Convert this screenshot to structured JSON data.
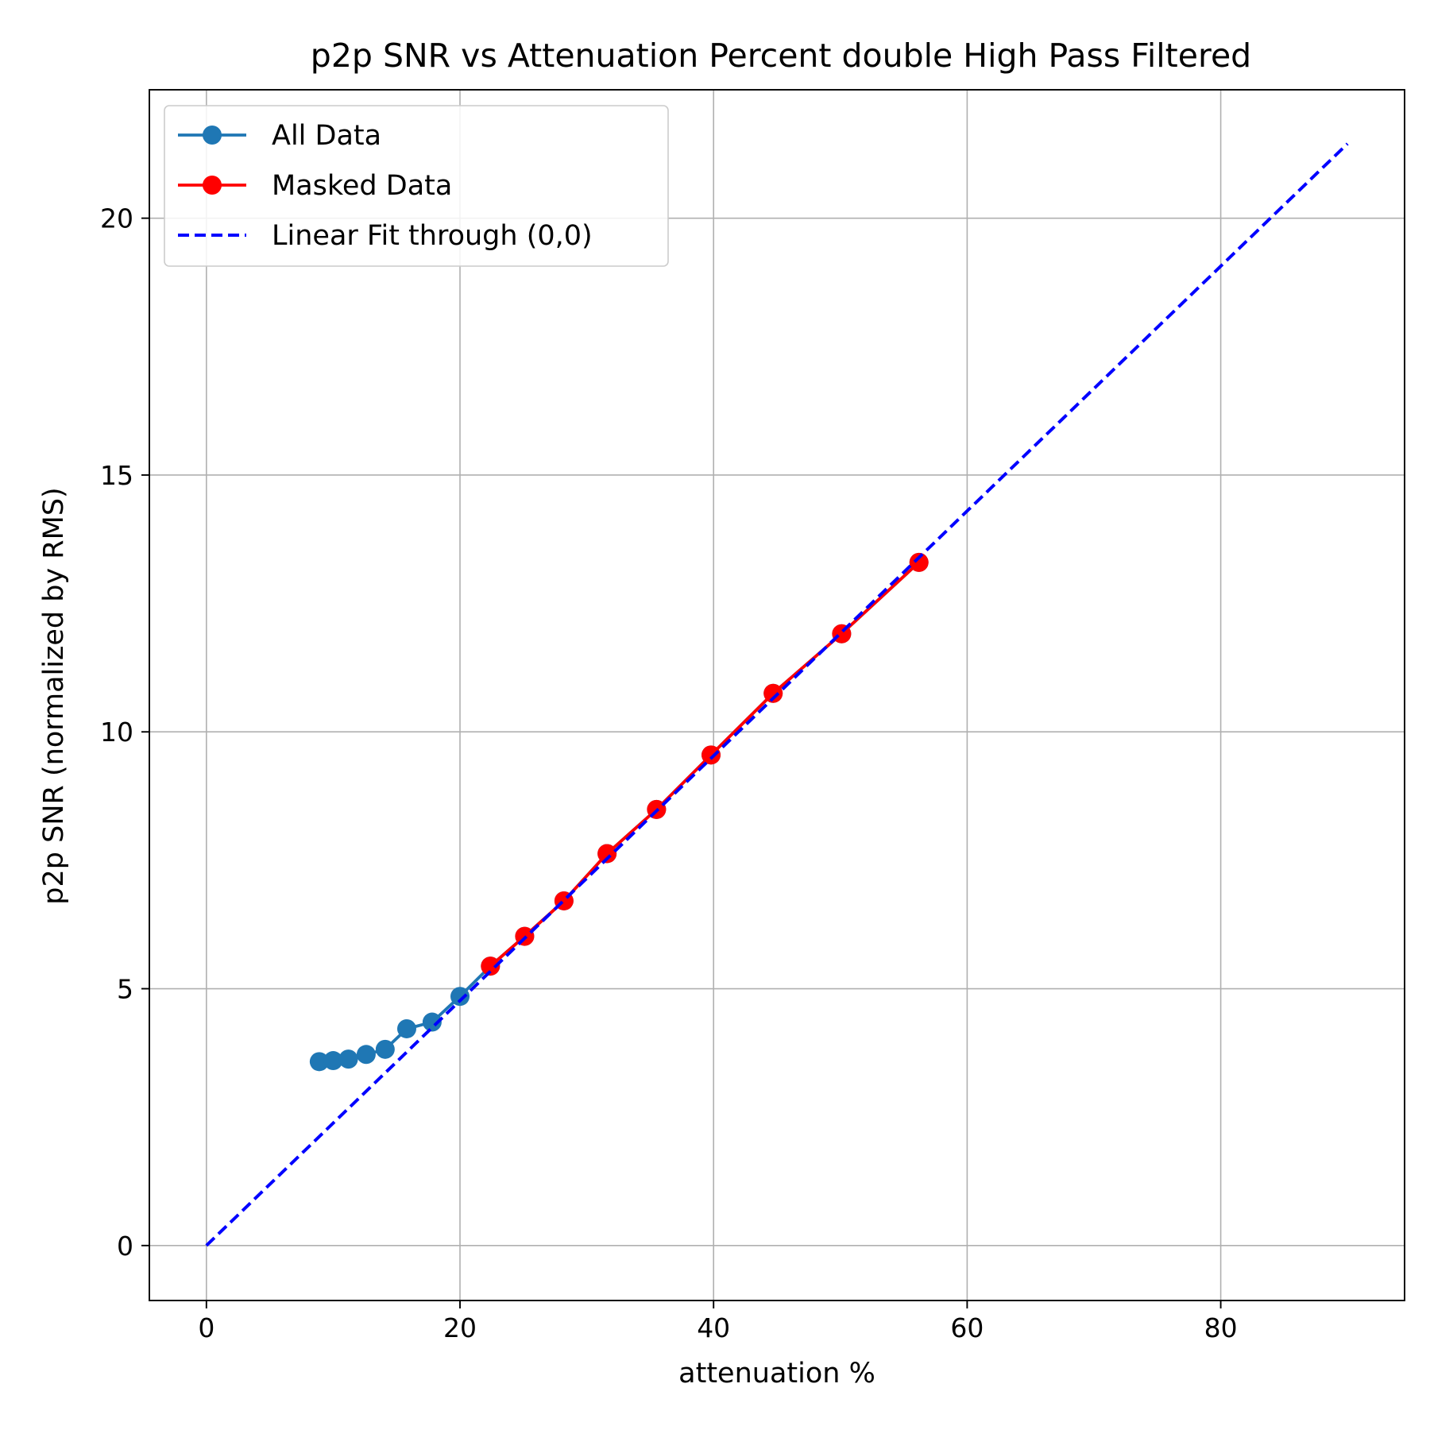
{
  "chart_data": {
    "type": "line",
    "title": "p2p SNR vs Attenuation Percent double High Pass Filtered",
    "xlabel": "attenuation %",
    "ylabel": "p2p SNR (normalized by RMS)",
    "xlim": [
      -4.5,
      94.5
    ],
    "ylim": [
      -1.07,
      22.5
    ],
    "xticks": [
      0,
      20,
      40,
      60,
      80
    ],
    "yticks": [
      0,
      5,
      10,
      15,
      20
    ],
    "xtick_labels": [
      "0",
      "20",
      "40",
      "60",
      "80"
    ],
    "ytick_labels": [
      "0",
      "5",
      "10",
      "15",
      "20"
    ],
    "grid": true,
    "legend_position": "upper-left",
    "series": [
      {
        "name": "All Data",
        "style": "line-with-circle-markers",
        "color": "#1f77b4",
        "x": [
          8.9,
          10.0,
          11.2,
          12.6,
          14.1,
          15.8,
          17.8,
          20.0,
          22.4,
          25.1,
          28.2,
          31.6,
          35.5,
          39.8,
          44.7,
          50.1,
          56.2
        ],
        "y": [
          3.58,
          3.6,
          3.63,
          3.72,
          3.82,
          4.22,
          4.35,
          4.85,
          5.44,
          6.02,
          6.71,
          7.63,
          8.49,
          9.55,
          10.75,
          11.91,
          13.3
        ]
      },
      {
        "name": "Masked Data",
        "style": "line-with-circle-markers",
        "color": "#ff0000",
        "x": [
          22.4,
          25.1,
          28.2,
          31.6,
          35.5,
          39.8,
          44.7,
          50.1,
          56.2
        ],
        "y": [
          5.44,
          6.02,
          6.71,
          7.63,
          8.49,
          9.55,
          10.75,
          11.91,
          13.3
        ]
      },
      {
        "name": "Linear Fit through (0,0)",
        "style": "dashed-line",
        "color": "#0000ff",
        "x": [
          0,
          90
        ],
        "y": [
          0,
          21.45
        ]
      }
    ]
  }
}
